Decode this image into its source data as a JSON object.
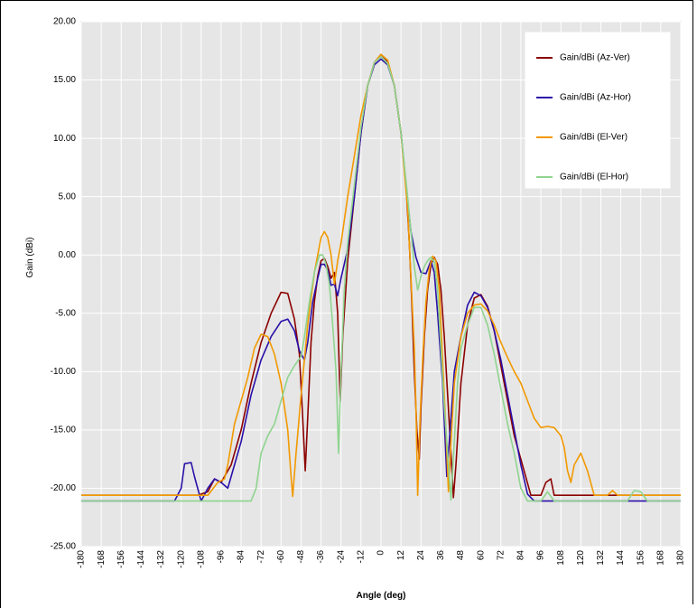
{
  "chart_data": {
    "type": "line",
    "title": "",
    "xlabel": "Angle (deg)",
    "ylabel": "Gain (dBi)",
    "xlim": [
      -180,
      180
    ],
    "ylim": [
      -25,
      20
    ],
    "x_ticks": [
      "-180",
      "-168",
      "-156",
      "-144",
      "-132",
      "-120",
      "-108",
      "-96",
      "-84",
      "-72",
      "-60",
      "-48",
      "-36",
      "-24",
      "-12",
      "0",
      "12",
      "24",
      "36",
      "48",
      "60",
      "72",
      "84",
      "96",
      "108",
      "120",
      "132",
      "144",
      "156",
      "168",
      "180"
    ],
    "y_ticks": [
      "20.00",
      "15.00",
      "10.00",
      "5.00",
      "0.00",
      "-5.00",
      "-10.00",
      "-15.00",
      "-20.00",
      "-25.00"
    ],
    "grid": true,
    "legend_position": "top-right",
    "series": [
      {
        "name": "Gain/dBi (Az-Ver)",
        "color": "#8b0000",
        "points": [
          [
            -180,
            -20.6
          ],
          [
            -110,
            -20.6
          ],
          [
            -104,
            -20.3
          ],
          [
            -100,
            -19.2
          ],
          [
            -96,
            -19.5
          ],
          [
            -90,
            -18
          ],
          [
            -84,
            -15
          ],
          [
            -78,
            -11
          ],
          [
            -72,
            -7.5
          ],
          [
            -66,
            -5
          ],
          [
            -60,
            -3.2
          ],
          [
            -56,
            -3.3
          ],
          [
            -52,
            -5.5
          ],
          [
            -49,
            -8.5
          ],
          [
            -47,
            -14
          ],
          [
            -45.5,
            -18.5
          ],
          [
            -44,
            -14
          ],
          [
            -42,
            -7.5
          ],
          [
            -40,
            -4
          ],
          [
            -38,
            -1.8
          ],
          [
            -36,
            -0.5
          ],
          [
            -34,
            -0.3
          ],
          [
            -32,
            -1
          ],
          [
            -30,
            -2
          ],
          [
            -28,
            -1.5
          ],
          [
            -26,
            -5
          ],
          [
            -24.5,
            -12.6
          ],
          [
            -23,
            -7
          ],
          [
            -20,
            -0.5
          ],
          [
            -16,
            5
          ],
          [
            -12,
            10.5
          ],
          [
            -8,
            14.5
          ],
          [
            -4,
            16.5
          ],
          [
            0,
            17.2
          ],
          [
            4,
            16.6
          ],
          [
            8,
            14.5
          ],
          [
            12,
            10.5
          ],
          [
            15,
            6
          ],
          [
            17,
            1
          ],
          [
            18.5,
            -4
          ],
          [
            20,
            -10
          ],
          [
            21.5,
            -15
          ],
          [
            23,
            -17.5
          ],
          [
            24,
            -13
          ],
          [
            26,
            -7
          ],
          [
            28,
            -3
          ],
          [
            30,
            -0.8
          ],
          [
            32,
            -0.2
          ],
          [
            34,
            -0.8
          ],
          [
            36,
            -3
          ],
          [
            38,
            -7
          ],
          [
            40,
            -12
          ],
          [
            42,
            -17
          ],
          [
            43.5,
            -20.8
          ],
          [
            45,
            -18
          ],
          [
            48,
            -11
          ],
          [
            52,
            -6
          ],
          [
            56,
            -3.7
          ],
          [
            60,
            -3.4
          ],
          [
            64,
            -4.4
          ],
          [
            68,
            -6.5
          ],
          [
            72,
            -9.5
          ],
          [
            76,
            -12.5
          ],
          [
            80,
            -15.5
          ],
          [
            84,
            -17.5
          ],
          [
            90,
            -20.6
          ],
          [
            96,
            -20.6
          ],
          [
            99,
            -19.5
          ],
          [
            102,
            -19.2
          ],
          [
            104,
            -20.6
          ],
          [
            180,
            -20.6
          ]
        ]
      },
      {
        "name": "Gain/dBi (Az-Hor)",
        "color": "#2a0fa8",
        "points": [
          [
            -180,
            -21.1
          ],
          [
            -124,
            -21.1
          ],
          [
            -120,
            -20
          ],
          [
            -118,
            -17.9
          ],
          [
            -114,
            -17.8
          ],
          [
            -112,
            -19
          ],
          [
            -108,
            -21.1
          ],
          [
            -104,
            -20
          ],
          [
            -100,
            -19.2
          ],
          [
            -96,
            -19.5
          ],
          [
            -92,
            -20
          ],
          [
            -88,
            -18
          ],
          [
            -84,
            -16
          ],
          [
            -78,
            -12
          ],
          [
            -72,
            -9
          ],
          [
            -66,
            -7
          ],
          [
            -60,
            -5.7
          ],
          [
            -56,
            -5.5
          ],
          [
            -52,
            -6.5
          ],
          [
            -49,
            -8.2
          ],
          [
            -46,
            -9
          ],
          [
            -44,
            -7.5
          ],
          [
            -41,
            -4
          ],
          [
            -38,
            -2
          ],
          [
            -36,
            -0.8
          ],
          [
            -34,
            -0.8
          ],
          [
            -32,
            -1.3
          ],
          [
            -30,
            -2.6
          ],
          [
            -28,
            -2.5
          ],
          [
            -26,
            -3.5
          ],
          [
            -24,
            -2
          ],
          [
            -20,
            0.5
          ],
          [
            -16,
            5
          ],
          [
            -12,
            10.5
          ],
          [
            -8,
            14.5
          ],
          [
            -4,
            16.3
          ],
          [
            0,
            16.8
          ],
          [
            4,
            16.3
          ],
          [
            8,
            14.5
          ],
          [
            12,
            10.5
          ],
          [
            15,
            6
          ],
          [
            18,
            2
          ],
          [
            21,
            -0.2
          ],
          [
            24,
            -1.5
          ],
          [
            27,
            -1.6
          ],
          [
            30,
            -0.5
          ],
          [
            32,
            -1.5
          ],
          [
            34,
            -5
          ],
          [
            37,
            -11
          ],
          [
            39.5,
            -19
          ],
          [
            42,
            -14
          ],
          [
            44,
            -10
          ],
          [
            48,
            -7
          ],
          [
            52,
            -4.3
          ],
          [
            56,
            -3.2
          ],
          [
            60,
            -3.5
          ],
          [
            64,
            -4.5
          ],
          [
            68,
            -6.5
          ],
          [
            72,
            -9
          ],
          [
            76,
            -12
          ],
          [
            80,
            -15
          ],
          [
            84,
            -18
          ],
          [
            88,
            -20.5
          ],
          [
            92,
            -21.1
          ],
          [
            180,
            -21.1
          ]
        ]
      },
      {
        "name": "Gain/dBi (El-Ver)",
        "color": "#f29900",
        "points": [
          [
            -180,
            -20.6
          ],
          [
            -104,
            -20.6
          ],
          [
            -98,
            -19.5
          ],
          [
            -94,
            -19.2
          ],
          [
            -92,
            -18
          ],
          [
            -88,
            -14.5
          ],
          [
            -84,
            -12.5
          ],
          [
            -80,
            -10.5
          ],
          [
            -76,
            -8
          ],
          [
            -72,
            -6.8
          ],
          [
            -68,
            -7
          ],
          [
            -64,
            -8.5
          ],
          [
            -60,
            -11
          ],
          [
            -56,
            -15
          ],
          [
            -54,
            -19
          ],
          [
            -53,
            -20.7
          ],
          [
            -51,
            -17
          ],
          [
            -48,
            -12
          ],
          [
            -44,
            -6
          ],
          [
            -40,
            -1.5
          ],
          [
            -36,
            1.5
          ],
          [
            -34,
            2
          ],
          [
            -32,
            1.5
          ],
          [
            -30,
            0
          ],
          [
            -28,
            -2.5
          ],
          [
            -26,
            -0.5
          ],
          [
            -24,
            1
          ],
          [
            -20,
            5
          ],
          [
            -16,
            8.5
          ],
          [
            -12,
            12
          ],
          [
            -8,
            14.5
          ],
          [
            -4,
            16.5
          ],
          [
            0,
            17.2
          ],
          [
            4,
            16.7
          ],
          [
            8,
            14.5
          ],
          [
            12,
            10.5
          ],
          [
            16,
            4
          ],
          [
            18,
            -2
          ],
          [
            20,
            -8
          ],
          [
            21,
            -13
          ],
          [
            22,
            -20.6
          ],
          [
            23.5,
            -14
          ],
          [
            25,
            -9
          ],
          [
            27,
            -4
          ],
          [
            29,
            -1.2
          ],
          [
            31,
            -0.1
          ],
          [
            33,
            -0.5
          ],
          [
            35,
            -3
          ],
          [
            37,
            -9
          ],
          [
            39,
            -15
          ],
          [
            40.5,
            -20.3
          ],
          [
            42,
            -16
          ],
          [
            44,
            -11
          ],
          [
            48,
            -7
          ],
          [
            52,
            -5
          ],
          [
            56,
            -4.3
          ],
          [
            60,
            -4.2
          ],
          [
            64,
            -4.8
          ],
          [
            68,
            -6
          ],
          [
            72,
            -7.5
          ],
          [
            76,
            -8.8
          ],
          [
            80,
            -10
          ],
          [
            84,
            -11
          ],
          [
            88,
            -12.5
          ],
          [
            92,
            -14
          ],
          [
            96,
            -14.8
          ],
          [
            100,
            -14.7
          ],
          [
            104,
            -14.8
          ],
          [
            108,
            -15.5
          ],
          [
            110,
            -16.5
          ],
          [
            112,
            -18.5
          ],
          [
            114,
            -19.5
          ],
          [
            116,
            -18
          ],
          [
            120,
            -17
          ],
          [
            124,
            -18.5
          ],
          [
            128,
            -20.6
          ],
          [
            136,
            -20.6
          ],
          [
            139,
            -20.2
          ],
          [
            142,
            -20.6
          ],
          [
            180,
            -20.6
          ]
        ]
      },
      {
        "name": "Gain/dBi (El-Hor)",
        "color": "#8fd48f",
        "points": [
          [
            -180,
            -21.1
          ],
          [
            -78,
            -21.1
          ],
          [
            -75,
            -20
          ],
          [
            -72,
            -17
          ],
          [
            -68,
            -15.5
          ],
          [
            -64,
            -14.5
          ],
          [
            -60,
            -12.5
          ],
          [
            -56,
            -10.5
          ],
          [
            -52,
            -9.5
          ],
          [
            -48,
            -8.7
          ],
          [
            -46,
            -7
          ],
          [
            -43,
            -4
          ],
          [
            -40,
            -1.5
          ],
          [
            -37,
            0
          ],
          [
            -35,
            0
          ],
          [
            -33,
            -0.8
          ],
          [
            -31,
            -2.5
          ],
          [
            -29,
            -6
          ],
          [
            -27,
            -10
          ],
          [
            -25.5,
            -17
          ],
          [
            -24,
            -10
          ],
          [
            -22,
            -3
          ],
          [
            -20,
            1
          ],
          [
            -16,
            6
          ],
          [
            -12,
            11
          ],
          [
            -8,
            14.5
          ],
          [
            -4,
            16.5
          ],
          [
            0,
            17
          ],
          [
            4,
            16.4
          ],
          [
            8,
            14.5
          ],
          [
            12,
            10.5
          ],
          [
            16,
            5
          ],
          [
            20,
            -1
          ],
          [
            22,
            -3
          ],
          [
            24,
            -1.8
          ],
          [
            26,
            -1
          ],
          [
            28,
            -0.5
          ],
          [
            30,
            -0.2
          ],
          [
            32,
            -0.6
          ],
          [
            34,
            -3
          ],
          [
            36,
            -8
          ],
          [
            38,
            -13
          ],
          [
            40,
            -17
          ],
          [
            42,
            -21
          ],
          [
            44,
            -16
          ],
          [
            46,
            -11
          ],
          [
            48,
            -8
          ],
          [
            52,
            -6
          ],
          [
            56,
            -4.5
          ],
          [
            60,
            -4.5
          ],
          [
            64,
            -6
          ],
          [
            68,
            -8.5
          ],
          [
            72,
            -11.5
          ],
          [
            76,
            -14.5
          ],
          [
            80,
            -17
          ],
          [
            84,
            -20
          ],
          [
            88,
            -21.1
          ],
          [
            96,
            -21.1
          ],
          [
            100,
            -20.3
          ],
          [
            104,
            -21.1
          ],
          [
            148,
            -21.1
          ],
          [
            152,
            -20.2
          ],
          [
            156,
            -20.3
          ],
          [
            160,
            -21.1
          ],
          [
            180,
            -21.1
          ]
        ]
      }
    ]
  }
}
